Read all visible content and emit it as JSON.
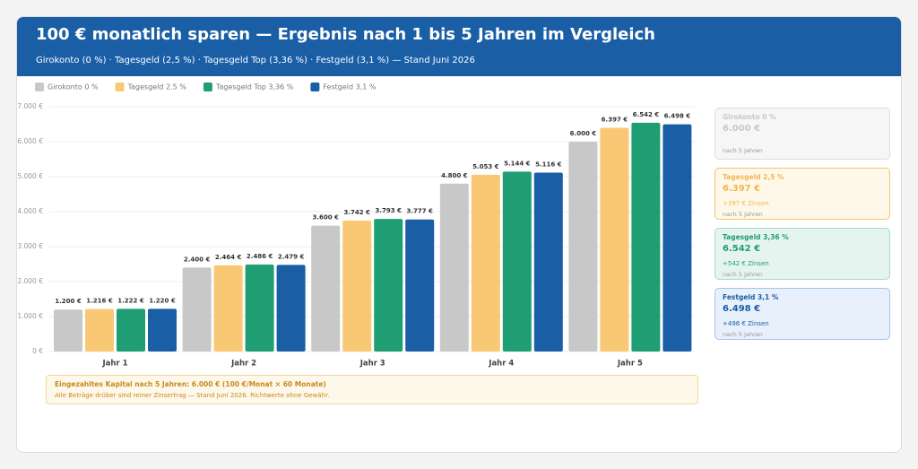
{
  "header": {
    "title": "100 € monatlich sparen — Ergebnis nach 1 bis 5 Jahren im Vergleich",
    "subtitle": "Girokonto (0 %) · Tagesgeld (2,5 %) · Tagesgeld Top (3,36 %) · Festgeld (3,1 %) — Stand Juni 2026"
  },
  "chart_data": {
    "type": "bar",
    "categories": [
      "Jahr 1",
      "Jahr 2",
      "Jahr 3",
      "Jahr 4",
      "Jahr 5"
    ],
    "series": [
      {
        "name": "Girokonto 0 %",
        "color": "#c8c8c8",
        "values": [
          1200,
          2400,
          3600,
          4800,
          6000
        ],
        "value_labels": [
          "1.200 €",
          "2.400 €",
          "3.600 €",
          "4.800 €",
          "6.000 €"
        ]
      },
      {
        "name": "Tagesgeld 2.5 %",
        "color": "#f9c874",
        "values": [
          1216,
          2464,
          3742,
          5053,
          6397
        ],
        "value_labels": [
          "1.216 €",
          "2.464 €",
          "3.742 €",
          "5.053 €",
          "6.397 €"
        ]
      },
      {
        "name": "Tagesgeld Top 3,36 %",
        "color": "#1f9e74",
        "values": [
          1222,
          2486,
          3793,
          5144,
          6542
        ],
        "value_labels": [
          "1.222 €",
          "2.486 €",
          "3.793 €",
          "5.144 €",
          "6.542 €"
        ]
      },
      {
        "name": "Festgeld 3,1 %",
        "color": "#1a5ea6",
        "values": [
          1220,
          2479,
          3777,
          5116,
          6498
        ],
        "value_labels": [
          "1.220 €",
          "2.479 €",
          "3.777 €",
          "5.116 €",
          "6.498 €"
        ]
      }
    ],
    "ylim": [
      0,
      7000
    ],
    "yticks": [
      {
        "value": 0,
        "label": "0 €"
      },
      {
        "value": 1000,
        "label": "1.000 €"
      },
      {
        "value": 2000,
        "label": "2.000 €"
      },
      {
        "value": 3000,
        "label": "3.000 €"
      },
      {
        "value": 4000,
        "label": "4.000 €"
      },
      {
        "value": 5000,
        "label": "5.000 €"
      },
      {
        "value": 6000,
        "label": "6.000 €"
      },
      {
        "value": 7000,
        "label": "7.000 €"
      }
    ],
    "grid": true,
    "legend": "top"
  },
  "note": {
    "title": "Eingezahltes Kapital nach 5 Jahren: 6.000 € (100 €/Monat × 60 Monate)",
    "text": "Alle Beträge drüber sind reiner Zinsertrag — Stand Juni 2026. Richtwerte ohne Gewähr."
  },
  "cards": [
    {
      "title": "Girokonto 0 %",
      "amount": "6.000 €",
      "note": "nach 5 Jahren"
    },
    {
      "title": "Tagesgeld 2,5 %",
      "amount": "6.397 €",
      "interest": "+397 € Zinsen",
      "note": "nach 5 Jahren"
    },
    {
      "title": "Tagesgeld 3,36 %",
      "amount": "6.542 €",
      "interest": "+542 € Zinsen",
      "note": "nach 5 Jahren"
    },
    {
      "title": "Festgeld 3,1 %",
      "amount": "6.498 €",
      "interest": "+498 € Zinsen",
      "note": "nach 5 Jahren"
    }
  ]
}
